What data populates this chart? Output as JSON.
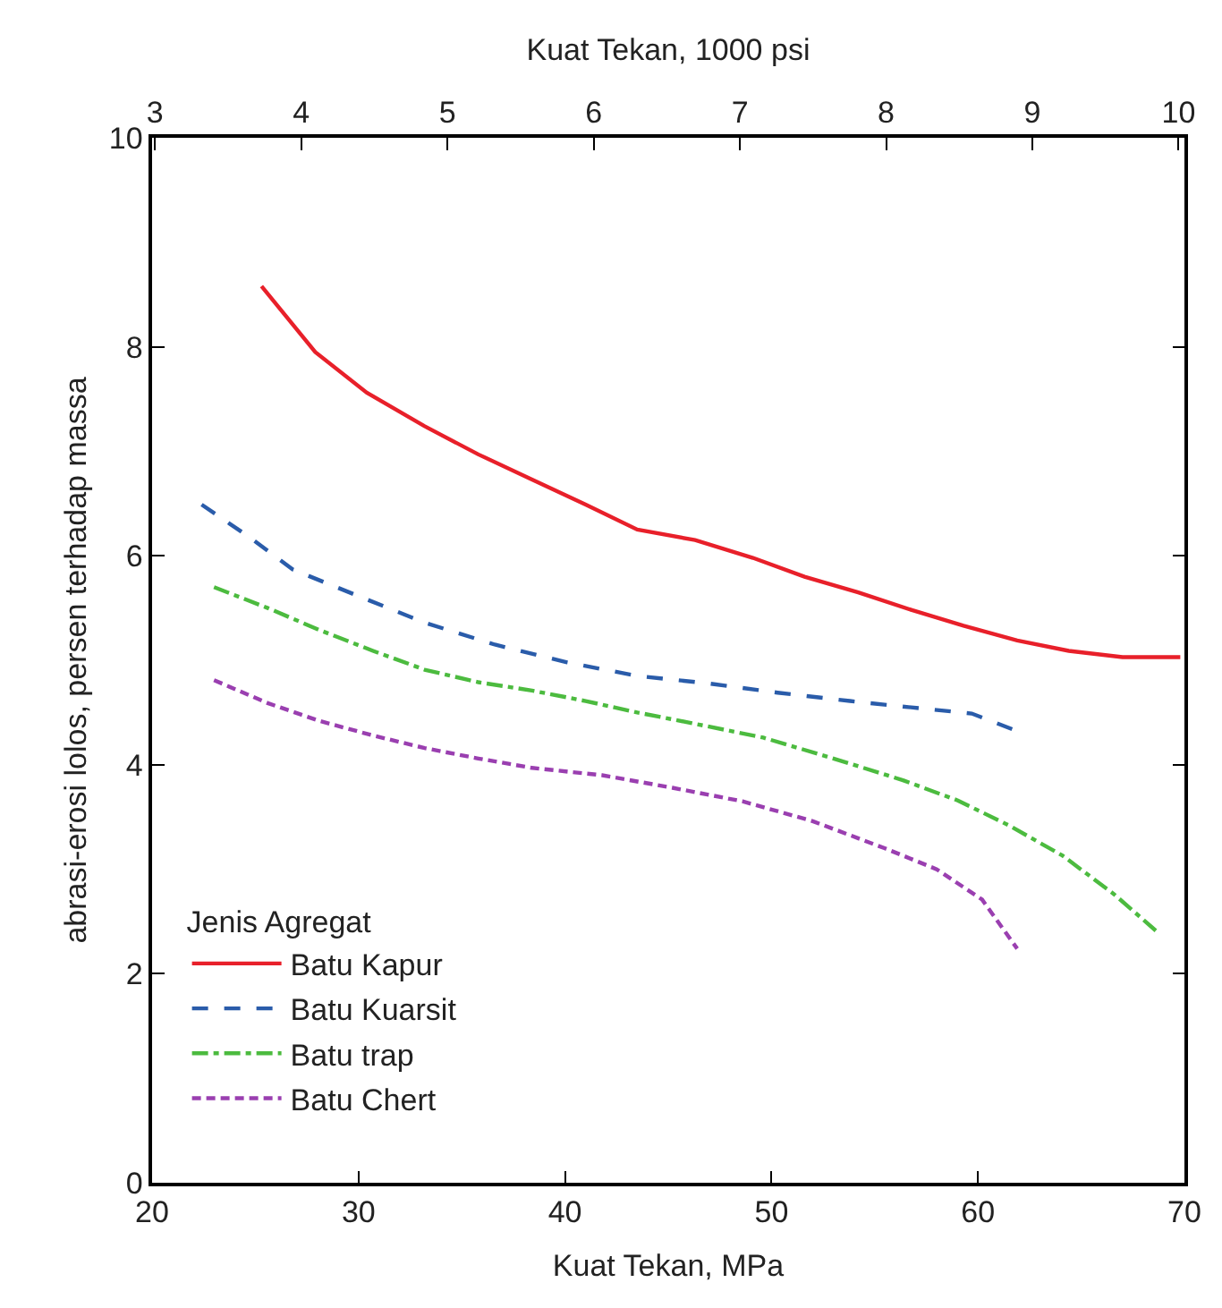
{
  "chart_data": {
    "type": "line",
    "xlabel": "Kuat Tekan, MPa",
    "ylabel": "abrasi-erosi lolos, persen terhadap massa",
    "x2label": "Kuat Tekan, 1000 psi",
    "legend_title": "Jenis Agregat",
    "xlim": [
      20,
      70
    ],
    "xticks": [
      20,
      30,
      40,
      50,
      60,
      70
    ],
    "ylim": [
      0,
      10
    ],
    "yticks": [
      0,
      2,
      4,
      6,
      8,
      10
    ],
    "x2lim": [
      2.98,
      10.04
    ],
    "x2ticks": [
      3,
      4,
      5,
      6,
      7,
      8,
      9,
      10
    ],
    "legend": "bottom left",
    "marker": "none",
    "series": [
      {
        "name": "Batu Kapur",
        "color": "#e8202a",
        "line_style": "solid",
        "x": [
          25.3,
          27.9,
          30.4,
          33.2,
          35.8,
          38.4,
          41,
          43.5,
          46.3,
          49.1,
          51.6,
          54.2,
          56.8,
          59.3,
          61.9,
          64.4,
          67.0,
          69.8
        ],
        "values": [
          8.58,
          7.95,
          7.56,
          7.24,
          6.97,
          6.73,
          6.49,
          6.25,
          6.15,
          5.98,
          5.8,
          5.65,
          5.48,
          5.33,
          5.19,
          5.09,
          5.03,
          5.03
        ]
      },
      {
        "name": "Batu Kuarsit",
        "color": "#2a5caa",
        "line_style": "dashed",
        "x": [
          22.4,
          24.7,
          26.8,
          29.8,
          33.2,
          36.6,
          40.1,
          43.5,
          46.9,
          50.3,
          53.8,
          57.2,
          59.7,
          61.8
        ],
        "values": [
          6.49,
          6.18,
          5.87,
          5.63,
          5.36,
          5.15,
          4.98,
          4.85,
          4.78,
          4.69,
          4.61,
          4.54,
          4.49,
          4.33
        ]
      },
      {
        "name": "Batu trap",
        "color": "#4cbb3f",
        "line_style": "dashdot",
        "x": [
          23.0,
          25.6,
          28.1,
          30.7,
          33.2,
          35.8,
          38.4,
          41,
          43.5,
          46.1,
          49.6,
          53.0,
          56.4,
          59,
          61.5,
          64.1,
          66.6,
          68.8
        ],
        "values": [
          5.7,
          5.5,
          5.29,
          5.09,
          4.91,
          4.79,
          4.71,
          4.61,
          4.5,
          4.4,
          4.26,
          4.06,
          3.85,
          3.66,
          3.42,
          3.13,
          2.76,
          2.38
        ]
      },
      {
        "name": "Batu Chert",
        "color": "#9a3fb0",
        "line_style": "shortdashed",
        "x": [
          23.0,
          25.6,
          28.1,
          30.7,
          33.2,
          35.8,
          38.4,
          41.8,
          45.2,
          48.6,
          52.0,
          55.5,
          58,
          60.2,
          61.9
        ],
        "values": [
          4.81,
          4.59,
          4.42,
          4.28,
          4.16,
          4.06,
          3.97,
          3.9,
          3.78,
          3.65,
          3.46,
          3.2,
          3.0,
          2.71,
          2.24
        ]
      }
    ]
  }
}
